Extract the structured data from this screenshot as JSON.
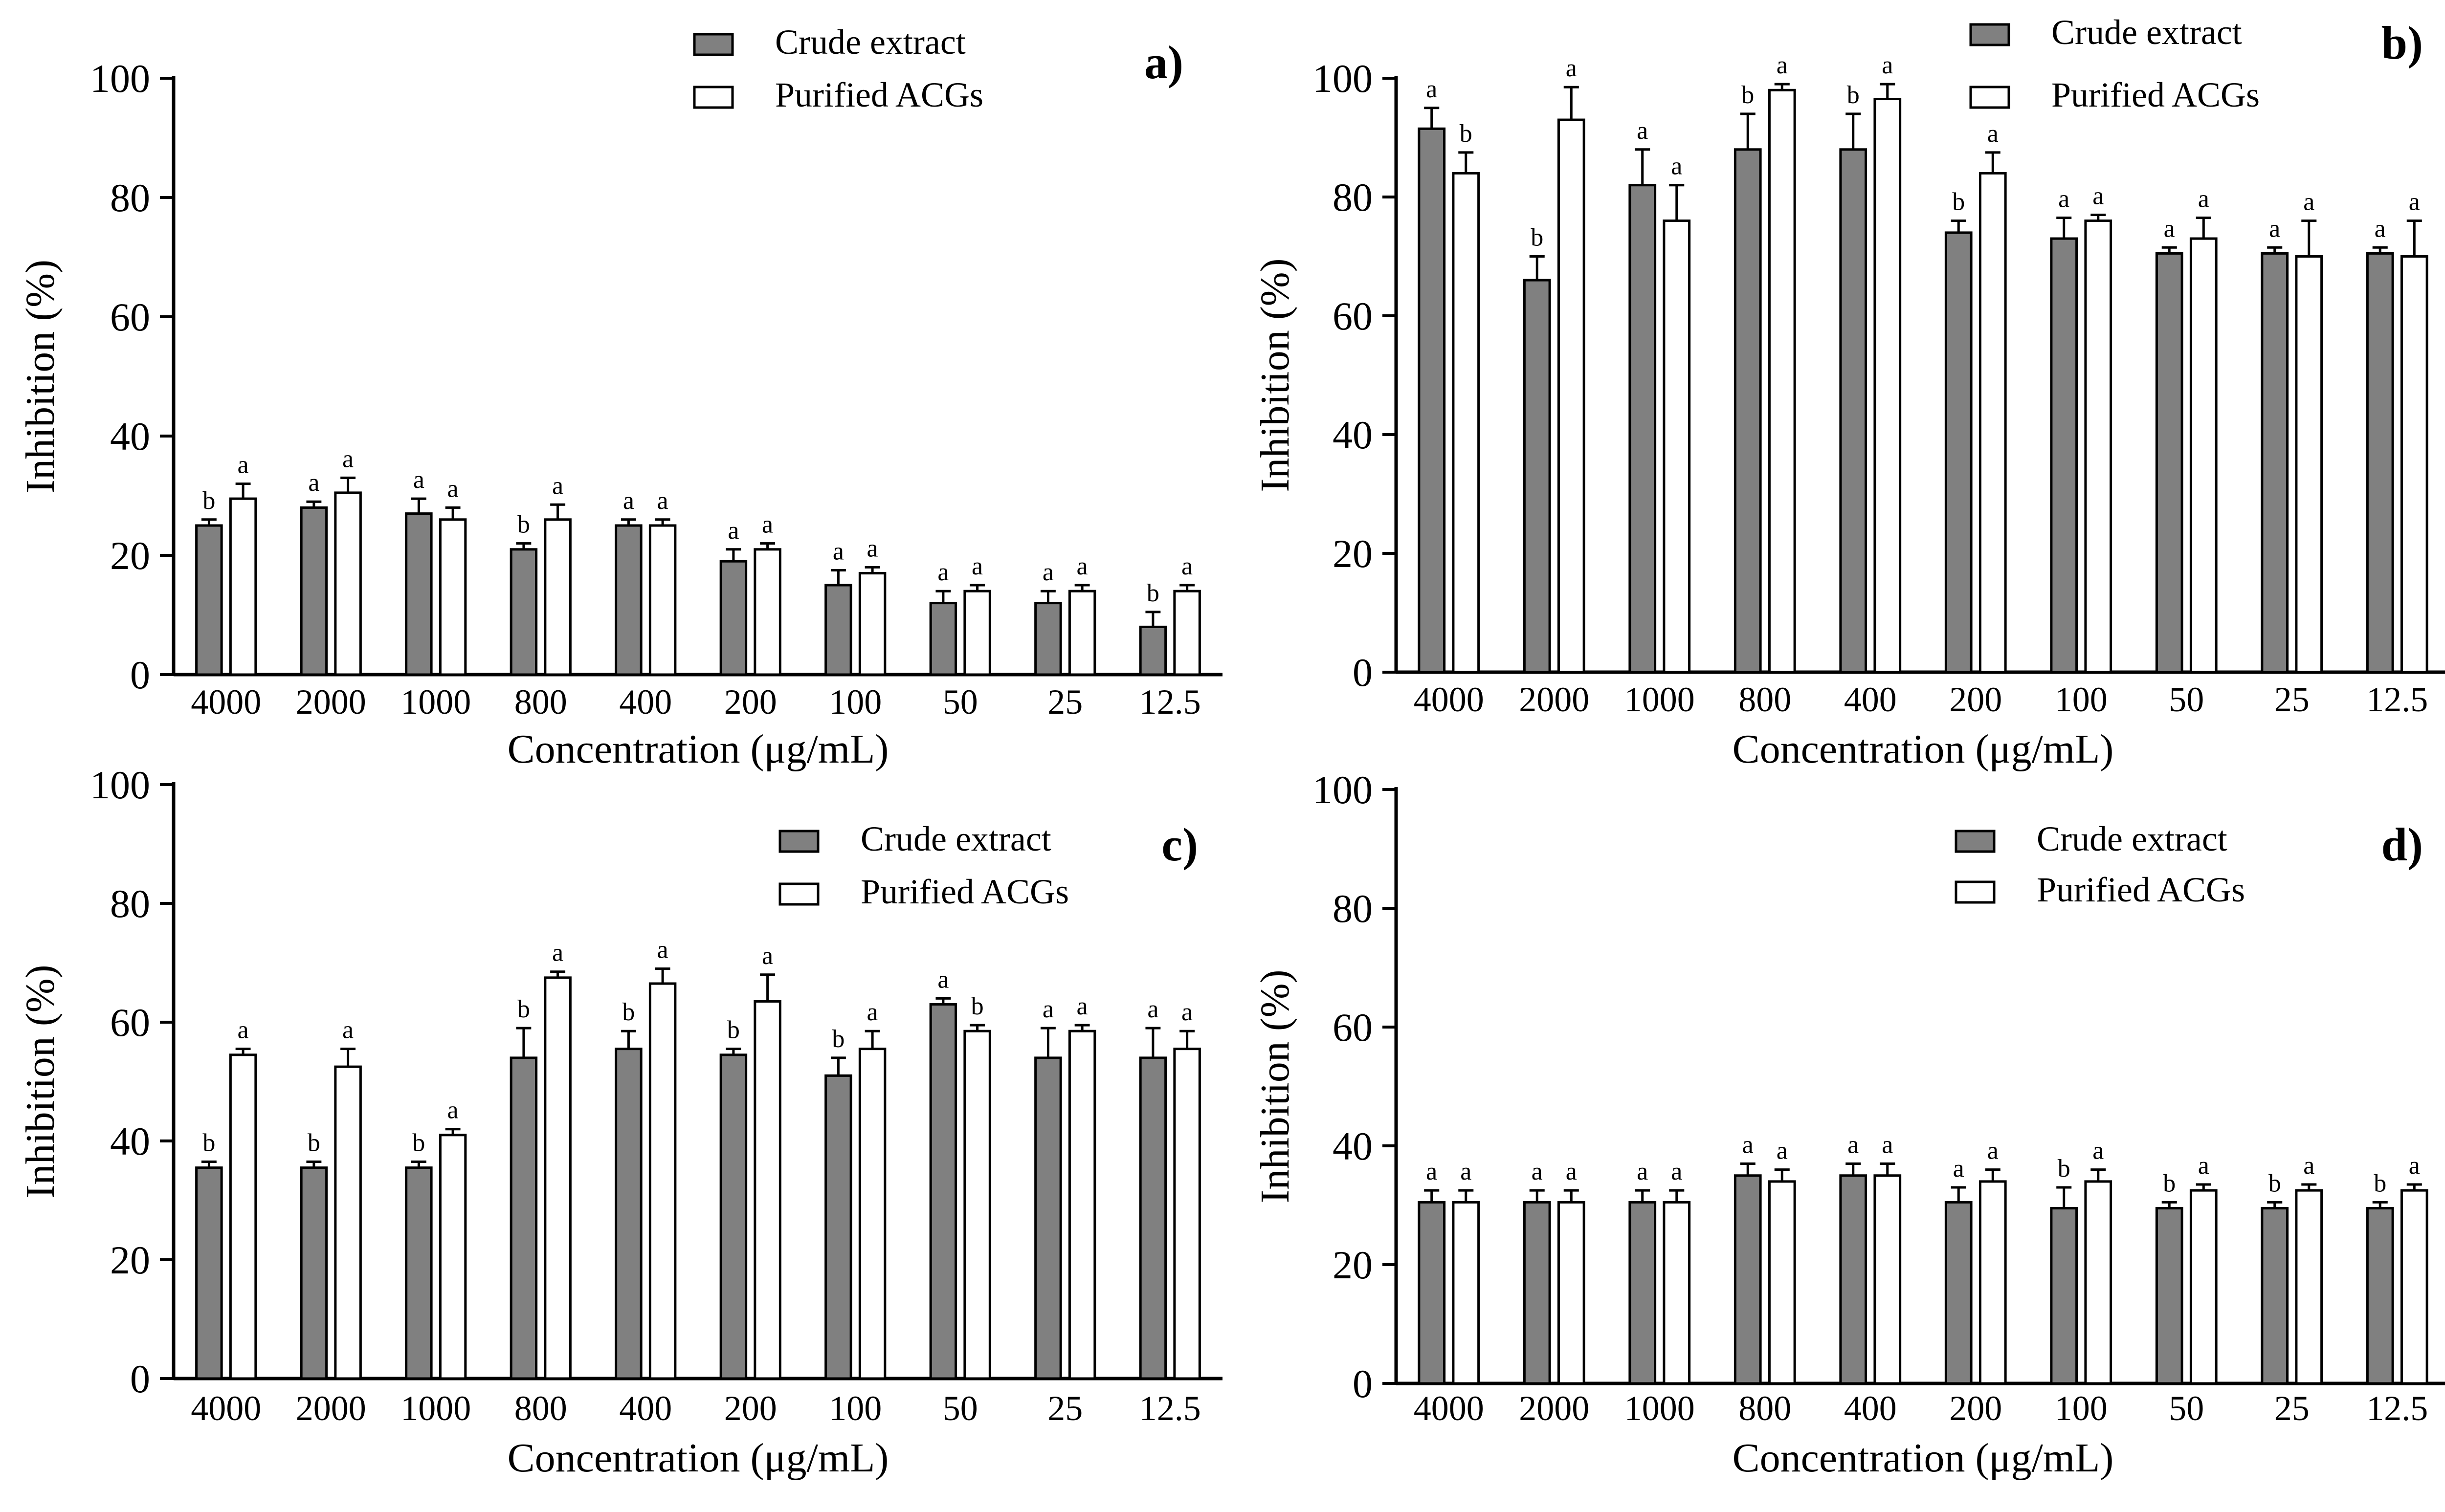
{
  "colors": {
    "crude": "#808080",
    "purified": "#ffffff",
    "stroke": "#000000"
  },
  "chart_data": [
    {
      "type": "bar",
      "panel": "a)",
      "xlabel": "Concentration  (μg/mL)",
      "ylabel": "Inhibition  (%)",
      "ylim": [
        0,
        100
      ],
      "yticks": [
        "0",
        "20",
        "40",
        "60",
        "80",
        "100"
      ],
      "categories": [
        "4000",
        "2000",
        "1000",
        "800",
        "400",
        "200",
        "100",
        "50",
        "25",
        "12.5"
      ],
      "legend": [
        "Crude extract",
        "Purified ACGs"
      ],
      "legend_position": "top-right",
      "series": [
        {
          "name": "Crude extract",
          "values": [
            25,
            28,
            27,
            21,
            25,
            19,
            15,
            12,
            12,
            8
          ],
          "errors": [
            1,
            1,
            2.5,
            1,
            1,
            2,
            2.5,
            2,
            2,
            2.5
          ],
          "letters": [
            "b",
            "a",
            "a",
            "b",
            "a",
            "a",
            "a",
            "a",
            "a",
            "b"
          ]
        },
        {
          "name": "Purified ACGs",
          "values": [
            29.5,
            30.5,
            26,
            26,
            25,
            21,
            17,
            14,
            14,
            14
          ],
          "errors": [
            2.5,
            2.5,
            2,
            2.5,
            1,
            1,
            1,
            1,
            1,
            1
          ],
          "letters": [
            "a",
            "a",
            "a",
            "a",
            "a",
            "a",
            "a",
            "a",
            "a",
            "a"
          ]
        }
      ]
    },
    {
      "type": "bar",
      "panel": "b)",
      "xlabel": "Concentration  (μg/mL)",
      "ylabel": "Inhibition  (%)",
      "ylim": [
        0,
        100
      ],
      "yticks": [
        "0",
        "20",
        "40",
        "60",
        "80",
        "100"
      ],
      "categories": [
        "4000",
        "2000",
        "1000",
        "800",
        "400",
        "200",
        "100",
        "50",
        "25",
        "12.5"
      ],
      "legend": [
        "Crude extract",
        "Purified ACGs"
      ],
      "legend_position": "top-right",
      "series": [
        {
          "name": "Crude extract",
          "values": [
            91.5,
            66,
            82,
            88,
            88,
            74,
            73,
            70.5,
            70.5,
            70.5
          ],
          "errors": [
            3.5,
            4,
            6,
            6,
            6,
            2,
            3.5,
            1,
            1,
            1
          ],
          "letters": [
            "a",
            "b",
            "a",
            "b",
            "b",
            "b",
            "a",
            "a",
            "a",
            "a"
          ]
        },
        {
          "name": "Purified ACGs",
          "values": [
            84,
            93,
            76,
            98,
            96.5,
            84,
            76,
            73,
            70,
            70
          ],
          "errors": [
            3.5,
            5.5,
            6,
            1,
            2.5,
            3.5,
            1,
            3.5,
            6,
            6
          ],
          "letters": [
            "b",
            "a",
            "a",
            "a",
            "a",
            "a",
            "a",
            "a",
            "a",
            "a"
          ]
        }
      ]
    },
    {
      "type": "bar",
      "panel": "c)",
      "xlabel": "Concentration  (μg/mL)",
      "ylabel": "Inhibition  (%)",
      "ylim": [
        0,
        100
      ],
      "yticks": [
        "0",
        "20",
        "40",
        "60",
        "80",
        "100"
      ],
      "categories": [
        "4000",
        "2000",
        "1000",
        "800",
        "400",
        "200",
        "100",
        "50",
        "25",
        "12.5"
      ],
      "legend": [
        "Crude extract",
        "Purified ACGs"
      ],
      "legend_position": "top-right",
      "series": [
        {
          "name": "Crude extract",
          "values": [
            35.5,
            35.5,
            35.5,
            54,
            55.5,
            54.5,
            51,
            63,
            54,
            54
          ],
          "errors": [
            1,
            1,
            1,
            5,
            3,
            1,
            3,
            1,
            5,
            5
          ],
          "letters": [
            "b",
            "b",
            "b",
            "b",
            "b",
            "b",
            "b",
            "a",
            "a",
            "a"
          ]
        },
        {
          "name": "Purified ACGs",
          "values": [
            54.5,
            52.5,
            41,
            67.5,
            66.5,
            63.5,
            55.5,
            58.5,
            58.5,
            55.5
          ],
          "errors": [
            1,
            3,
            1,
            1,
            2.5,
            4.5,
            3,
            1,
            1,
            3
          ],
          "letters": [
            "a",
            "a",
            "a",
            "a",
            "a",
            "a",
            "a",
            "b",
            "a",
            "a"
          ]
        }
      ]
    },
    {
      "type": "bar",
      "panel": "d)",
      "xlabel": "Concentration  (μg/mL)",
      "ylabel": "Inhibition  (%)",
      "ylim": [
        0,
        100
      ],
      "yticks": [
        "0",
        "20",
        "40",
        "60",
        "80",
        "100"
      ],
      "categories": [
        "4000",
        "2000",
        "1000",
        "800",
        "400",
        "200",
        "100",
        "50",
        "25",
        "12.5"
      ],
      "legend": [
        "Crude  extract",
        "Purified ACGs"
      ],
      "legend_position": "top-right",
      "series": [
        {
          "name": "Crude  extract",
          "values": [
            30.5,
            30.5,
            30.5,
            35,
            35,
            30.5,
            29.5,
            29.5,
            29.5,
            29.5
          ],
          "errors": [
            2,
            2,
            2,
            2,
            2,
            2.5,
            3.5,
            1,
            1,
            1
          ],
          "letters": [
            "a",
            "a",
            "a",
            "a",
            "a",
            "a",
            "b",
            "b",
            "b",
            "b"
          ]
        },
        {
          "name": "Purified ACGs",
          "values": [
            30.5,
            30.5,
            30.5,
            34,
            35,
            34,
            34,
            32.5,
            32.5,
            32.5
          ],
          "errors": [
            2,
            2,
            2,
            2,
            2,
            2,
            2,
            1,
            1,
            1
          ],
          "letters": [
            "a",
            "a",
            "a",
            "a",
            "a",
            "a",
            "a",
            "a",
            "a",
            "a"
          ]
        }
      ]
    }
  ]
}
